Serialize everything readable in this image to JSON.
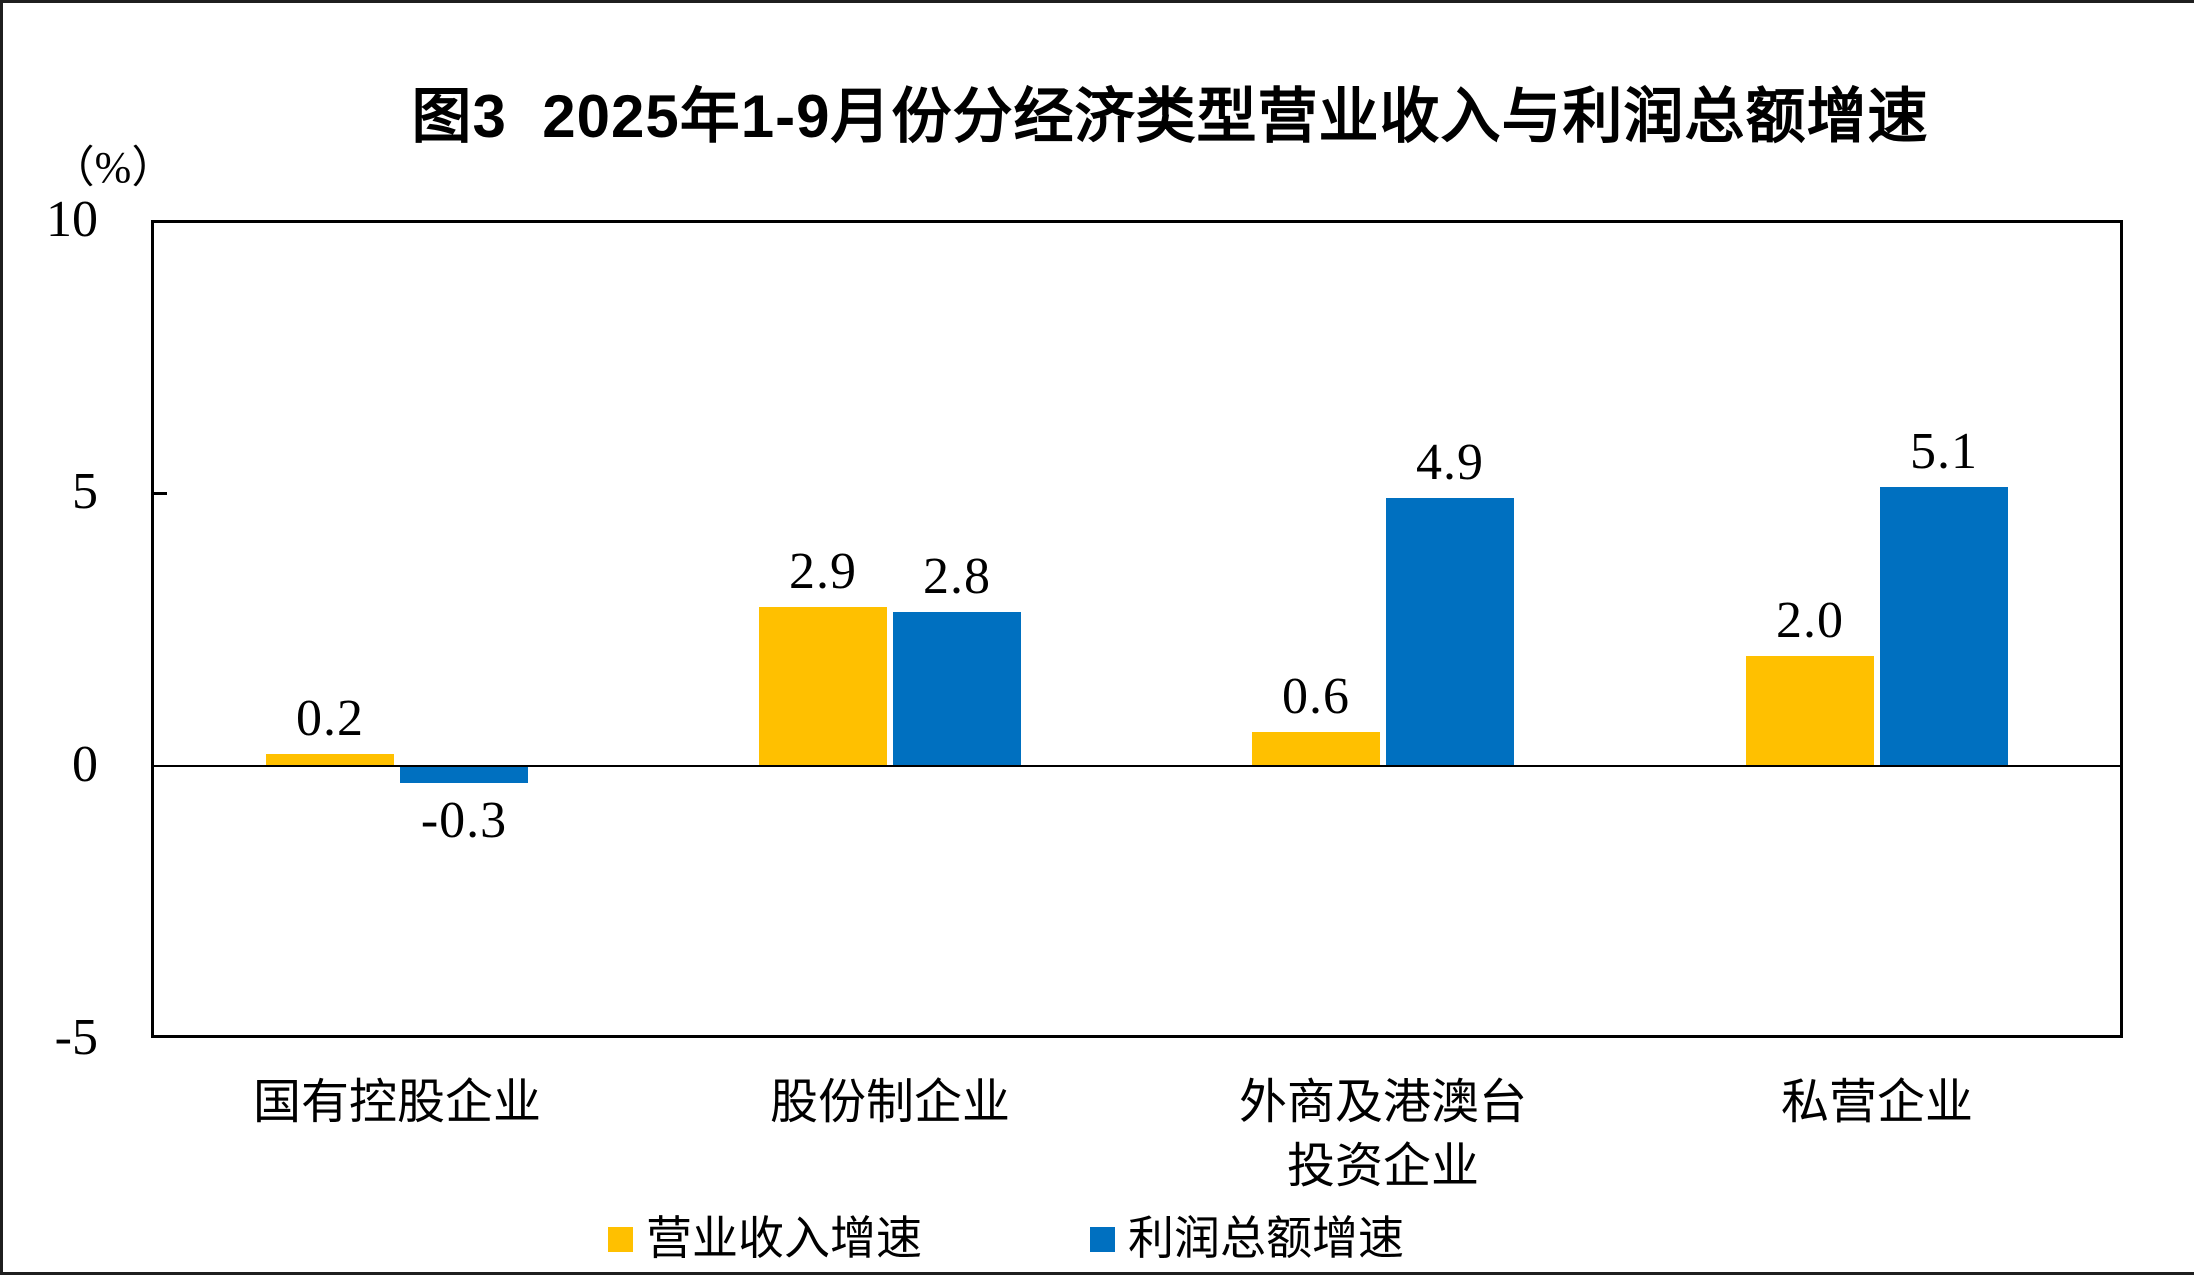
{
  "title": "图3  2025年1-9月份分经济类型营业收入与利润总额增速",
  "y_axis": {
    "unit_label": "（%）",
    "tick_labels": [
      "10",
      "5",
      "0",
      "-5"
    ]
  },
  "colors": {
    "revenue_series": "#FFC000",
    "profit_series": "#0070C0",
    "axis": "#000000"
  },
  "chart_data": {
    "type": "bar",
    "title": "图3 2025年1-9月份分经济类型营业收入与利润总额增速",
    "unit": "%",
    "categories": [
      "国有控股企业",
      "股份制企业",
      "外商及港澳台投资企业",
      "私营企业"
    ],
    "category_display_lines": [
      [
        "国有控股企业"
      ],
      [
        "股份制企业"
      ],
      [
        "外商及港澳台",
        "投资企业"
      ],
      [
        "私营企业"
      ]
    ],
    "series": [
      {
        "name": "营业收入增速",
        "color": "#FFC000",
        "values": [
          0.2,
          2.9,
          0.6,
          2.0
        ]
      },
      {
        "name": "利润总额增速",
        "color": "#0070C0",
        "values": [
          -0.3,
          2.8,
          4.9,
          5.1
        ]
      }
    ],
    "data_labels": [
      [
        "0.2",
        "2.9",
        "0.6",
        "2.0"
      ],
      [
        "-0.3",
        "2.8",
        "4.9",
        "5.1"
      ]
    ],
    "ylim": [
      -5,
      10
    ],
    "yticks": [
      10,
      5,
      0,
      -5
    ],
    "grid": false,
    "legend_position": "bottom"
  },
  "legend": {
    "items": [
      {
        "label": "营业收入增速",
        "color": "#FFC000"
      },
      {
        "label": "利润总额增速",
        "color": "#0070C0"
      }
    ]
  }
}
